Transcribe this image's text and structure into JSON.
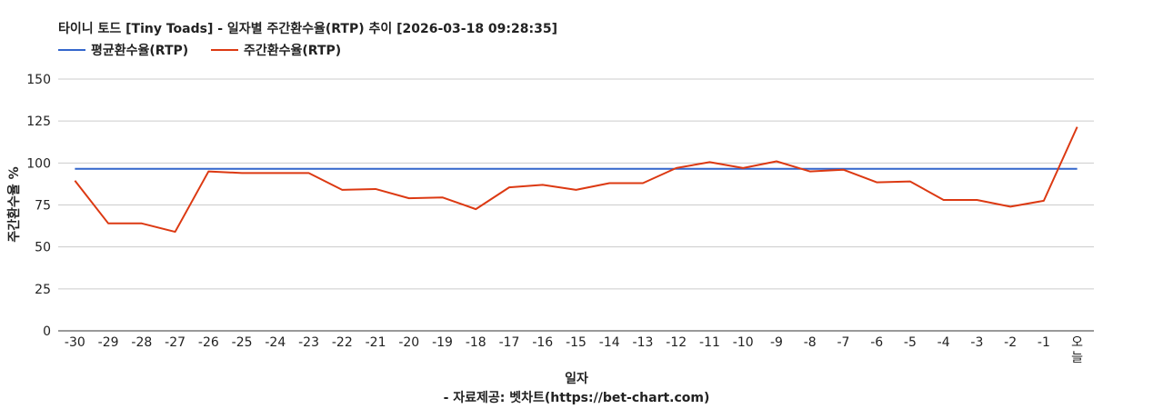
{
  "chart_data": {
    "type": "line",
    "title": "타이니 토드 [Tiny Toads] - 일자별 주간환수율(RTP) 추이 [2026-03-18 09:28:35]",
    "xlabel": "일자",
    "ylabel": "주간환수율 %",
    "footer": "- 자료제공: 벳차트(https://bet-chart.com)",
    "ylim": [
      0,
      150
    ],
    "yticks": [
      0,
      25,
      50,
      75,
      100,
      125,
      150
    ],
    "grid": true,
    "legend_position": "top-left",
    "categories": [
      "-30",
      "-29",
      "-28",
      "-27",
      "-26",
      "-25",
      "-24",
      "-23",
      "-22",
      "-21",
      "-20",
      "-19",
      "-18",
      "-17",
      "-16",
      "-15",
      "-14",
      "-13",
      "-12",
      "-11",
      "-10",
      "-9",
      "-8",
      "-7",
      "-6",
      "-5",
      "-4",
      "-3",
      "-2",
      "-1",
      "오늘"
    ],
    "series": [
      {
        "name": "평균환수율(RTP)",
        "color": "#3366cc",
        "values": [
          96.5,
          96.5,
          96.5,
          96.5,
          96.5,
          96.5,
          96.5,
          96.5,
          96.5,
          96.5,
          96.5,
          96.5,
          96.5,
          96.5,
          96.5,
          96.5,
          96.5,
          96.5,
          96.5,
          96.5,
          96.5,
          96.5,
          96.5,
          96.5,
          96.5,
          96.5,
          96.5,
          96.5,
          96.5,
          96.5,
          96.5
        ]
      },
      {
        "name": "주간환수율(RTP)",
        "color": "#dc3912",
        "values": [
          89.5,
          64,
          64,
          59,
          95,
          94,
          94,
          94,
          84,
          84.5,
          79,
          79.5,
          72.5,
          85.5,
          87,
          84,
          88,
          88,
          97,
          100.5,
          97,
          101,
          95,
          96,
          88.5,
          89,
          78,
          78,
          74,
          77.5,
          121.5
        ]
      }
    ]
  }
}
